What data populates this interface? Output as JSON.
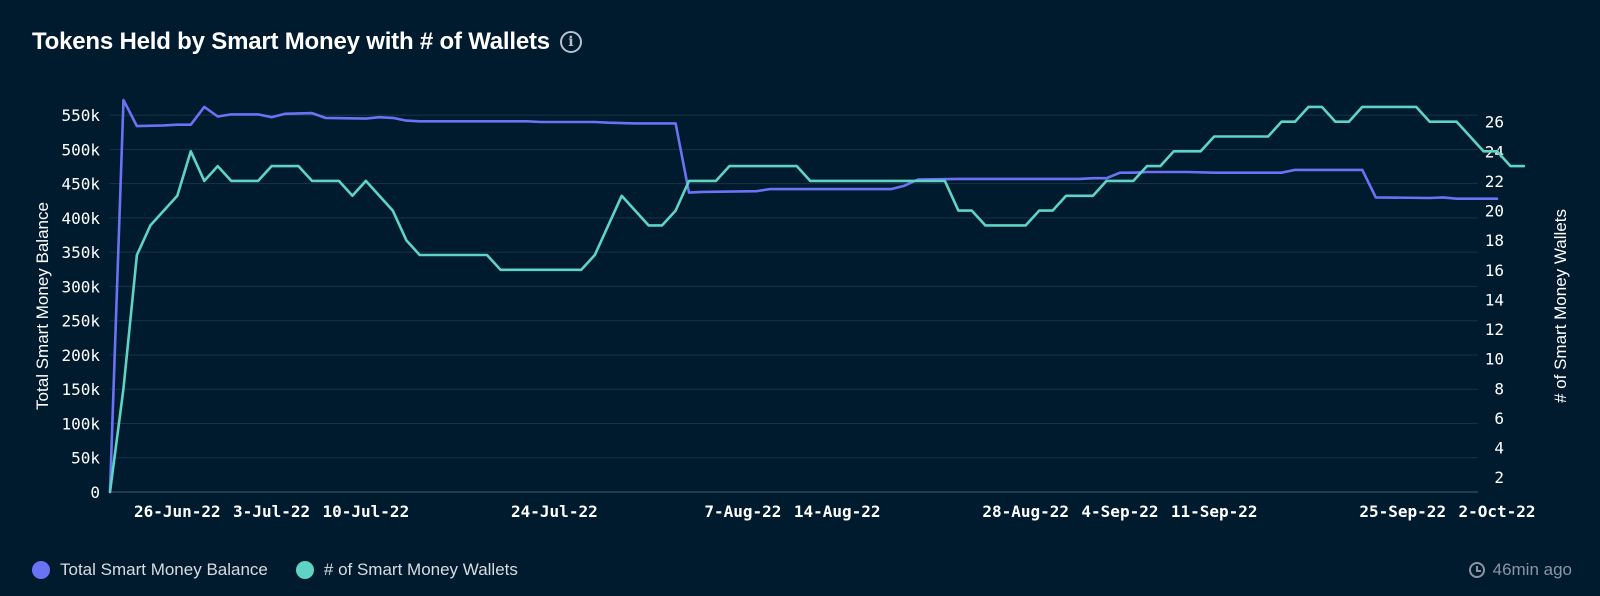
{
  "header": {
    "title": "Tokens Held by Smart Money with # of Wallets",
    "info_icon": "info-icon"
  },
  "footer": {
    "updated": "46min ago",
    "updated_icon": "clock-icon"
  },
  "chart_data": {
    "type": "line",
    "title": "Tokens Held by Smart Money with # of Wallets",
    "y_left_label": "Total Smart Money Balance",
    "y_right_label": "# of Smart Money Wallets",
    "y_left_range": [
      0,
      575000
    ],
    "y_right_range": [
      1,
      27.6
    ],
    "y_left_ticks": [
      0,
      50000,
      100000,
      150000,
      200000,
      250000,
      300000,
      350000,
      400000,
      450000,
      500000,
      550000
    ],
    "y_left_tick_labels": [
      "0",
      "50k",
      "100k",
      "150k",
      "200k",
      "250k",
      "300k",
      "350k",
      "400k",
      "450k",
      "500k",
      "550k"
    ],
    "y_right_ticks": [
      2,
      4,
      6,
      8,
      10,
      12,
      14,
      16,
      18,
      20,
      22,
      24,
      26
    ],
    "y_right_tick_labels": [
      "2",
      "4",
      "6",
      "8",
      "10",
      "12",
      "14",
      "16",
      "18",
      "20",
      "22",
      "24",
      "26"
    ],
    "grid": true,
    "legend_position": "bottom-left",
    "x_start_date": "2022-06-21",
    "x_end_date": "2022-10-02",
    "x_ticks": [
      "2022-06-26",
      "2022-07-03",
      "2022-07-10",
      "2022-07-24",
      "2022-08-07",
      "2022-08-14",
      "2022-08-28",
      "2022-09-04",
      "2022-09-11",
      "2022-09-25",
      "2022-10-02"
    ],
    "x_tick_labels": [
      "26-Jun-22",
      "3-Jul-22",
      "10-Jul-22",
      "24-Jul-22",
      "7-Aug-22",
      "14-Aug-22",
      "28-Aug-22",
      "4-Sep-22",
      "11-Sep-22",
      "25-Sep-22",
      "2-Oct-22"
    ],
    "series": [
      {
        "name": "Total Smart Money Balance",
        "axis": "left",
        "color": "#6b73f5",
        "points": [
          [
            "2022-06-21",
            0
          ],
          [
            "2022-06-22",
            572000
          ],
          [
            "2022-06-23",
            534000
          ],
          [
            "2022-06-25",
            535000
          ],
          [
            "2022-06-26",
            536000
          ],
          [
            "2022-06-27",
            536000
          ],
          [
            "2022-06-28",
            562000
          ],
          [
            "2022-06-29",
            548000
          ],
          [
            "2022-06-30",
            551000
          ],
          [
            "2022-07-02",
            551000
          ],
          [
            "2022-07-03",
            547000
          ],
          [
            "2022-07-04",
            552000
          ],
          [
            "2022-07-06",
            553000
          ],
          [
            "2022-07-07",
            546000
          ],
          [
            "2022-07-10",
            545000
          ],
          [
            "2022-07-11",
            547000
          ],
          [
            "2022-07-12",
            546000
          ],
          [
            "2022-07-13",
            542000
          ],
          [
            "2022-07-14",
            541000
          ],
          [
            "2022-07-22",
            541000
          ],
          [
            "2022-07-23",
            540000
          ],
          [
            "2022-07-27",
            540000
          ],
          [
            "2022-07-28",
            539000
          ],
          [
            "2022-07-30",
            538000
          ],
          [
            "2022-08-02",
            538000
          ],
          [
            "2022-08-03",
            437000
          ],
          [
            "2022-08-04",
            438000
          ],
          [
            "2022-08-08",
            439000
          ],
          [
            "2022-08-09",
            442000
          ],
          [
            "2022-08-18",
            442000
          ],
          [
            "2022-08-19",
            447000
          ],
          [
            "2022-08-20",
            456000
          ],
          [
            "2022-08-23",
            457000
          ],
          [
            "2022-09-01",
            457000
          ],
          [
            "2022-09-02",
            458000
          ],
          [
            "2022-09-03",
            458000
          ],
          [
            "2022-09-04",
            466000
          ],
          [
            "2022-09-05",
            466000
          ],
          [
            "2022-09-06",
            467000
          ],
          [
            "2022-09-08",
            467000
          ],
          [
            "2022-09-09",
            467000
          ],
          [
            "2022-09-11",
            466000
          ],
          [
            "2022-09-16",
            466000
          ],
          [
            "2022-09-17",
            470000
          ],
          [
            "2022-09-22",
            470000
          ],
          [
            "2022-09-23",
            430000
          ],
          [
            "2022-09-27",
            429000
          ],
          [
            "2022-09-28",
            430000
          ],
          [
            "2022-09-29",
            428000
          ],
          [
            "2022-10-02",
            428000
          ]
        ]
      },
      {
        "name": "# of Smart Money Wallets",
        "axis": "right",
        "color": "#5fd4c4",
        "points": [
          [
            "2022-06-21",
            1
          ],
          [
            "2022-06-22",
            8
          ],
          [
            "2022-06-23",
            17
          ],
          [
            "2022-06-24",
            19
          ],
          [
            "2022-06-26",
            21
          ],
          [
            "2022-06-27",
            24
          ],
          [
            "2022-06-28",
            22
          ],
          [
            "2022-06-29",
            23
          ],
          [
            "2022-06-30",
            22
          ],
          [
            "2022-07-02",
            22
          ],
          [
            "2022-07-03",
            23
          ],
          [
            "2022-07-05",
            23
          ],
          [
            "2022-07-06",
            22
          ],
          [
            "2022-07-08",
            22
          ],
          [
            "2022-07-09",
            21
          ],
          [
            "2022-07-10",
            22
          ],
          [
            "2022-07-12",
            20
          ],
          [
            "2022-07-13",
            18
          ],
          [
            "2022-07-14",
            17
          ],
          [
            "2022-07-19",
            17
          ],
          [
            "2022-07-20",
            16
          ],
          [
            "2022-07-26",
            16
          ],
          [
            "2022-07-27",
            17
          ],
          [
            "2022-07-29",
            21
          ],
          [
            "2022-07-31",
            19
          ],
          [
            "2022-08-01",
            19
          ],
          [
            "2022-08-02",
            20
          ],
          [
            "2022-08-03",
            22
          ],
          [
            "2022-08-05",
            22
          ],
          [
            "2022-08-06",
            23
          ],
          [
            "2022-08-11",
            23
          ],
          [
            "2022-08-12",
            22
          ],
          [
            "2022-08-18",
            22
          ],
          [
            "2022-08-22",
            22
          ],
          [
            "2022-08-23",
            20
          ],
          [
            "2022-08-24",
            20
          ],
          [
            "2022-08-25",
            19
          ],
          [
            "2022-08-28",
            19
          ],
          [
            "2022-08-29",
            20
          ],
          [
            "2022-08-30",
            20
          ],
          [
            "2022-08-31",
            21
          ],
          [
            "2022-09-02",
            21
          ],
          [
            "2022-09-03",
            22
          ],
          [
            "2022-09-05",
            22
          ],
          [
            "2022-09-06",
            23
          ],
          [
            "2022-09-07",
            23
          ],
          [
            "2022-09-08",
            24
          ],
          [
            "2022-09-10",
            24
          ],
          [
            "2022-09-11",
            25
          ],
          [
            "2022-09-15",
            25
          ],
          [
            "2022-09-16",
            26
          ],
          [
            "2022-09-17",
            26
          ],
          [
            "2022-09-18",
            27
          ],
          [
            "2022-09-19",
            27
          ],
          [
            "2022-09-20",
            26
          ],
          [
            "2022-09-21",
            26
          ],
          [
            "2022-09-22",
            27
          ],
          [
            "2022-09-26",
            27
          ],
          [
            "2022-09-27",
            26
          ],
          [
            "2022-09-29",
            26
          ],
          [
            "2022-09-30",
            25
          ],
          [
            "2022-10-01",
            24
          ],
          [
            "2022-10-02",
            24
          ],
          [
            "2022-10-03",
            23
          ],
          [
            "2022-10-04",
            23
          ]
        ]
      }
    ]
  }
}
